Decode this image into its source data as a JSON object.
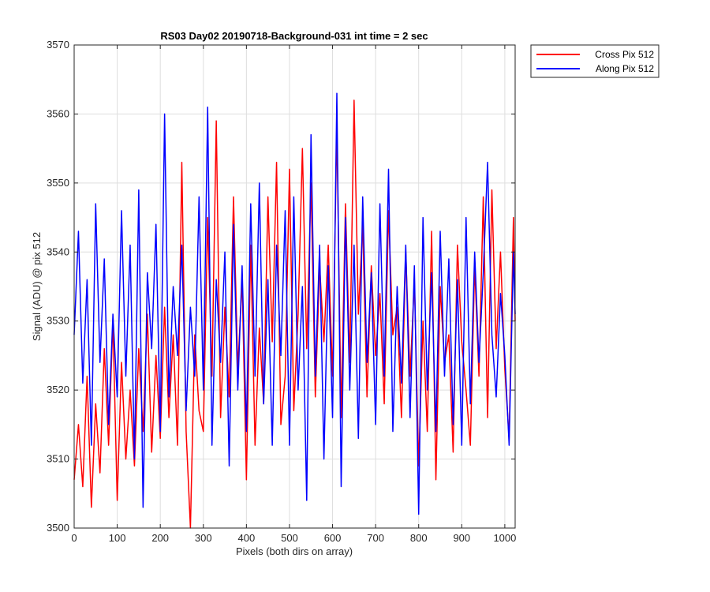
{
  "chart_data": {
    "type": "line",
    "title": "RS03 Day02 20190718-Background-031 int time = 2 sec",
    "xlabel": "Pixels (both dirs on array)",
    "ylabel": "Signal (ADU) @ pix 512",
    "xlim": [
      0,
      1024
    ],
    "ylim": [
      3500,
      3570
    ],
    "xticks": [
      0,
      100,
      200,
      300,
      400,
      500,
      600,
      700,
      800,
      900,
      1000
    ],
    "yticks": [
      3500,
      3510,
      3520,
      3530,
      3540,
      3550,
      3560,
      3570
    ],
    "grid": true,
    "legend_position": "outside-top-right",
    "series": [
      {
        "name": "Cross Pix 512",
        "color": "#ff0000",
        "x": [
          0,
          10,
          20,
          30,
          40,
          50,
          60,
          70,
          80,
          90,
          100,
          110,
          120,
          130,
          140,
          150,
          160,
          170,
          180,
          190,
          200,
          210,
          220,
          230,
          240,
          250,
          260,
          270,
          280,
          290,
          300,
          310,
          320,
          330,
          340,
          350,
          360,
          370,
          380,
          390,
          400,
          410,
          420,
          430,
          440,
          450,
          460,
          470,
          480,
          490,
          500,
          510,
          520,
          530,
          540,
          550,
          560,
          570,
          580,
          590,
          600,
          610,
          620,
          630,
          640,
          650,
          660,
          670,
          680,
          690,
          700,
          710,
          720,
          730,
          740,
          750,
          760,
          770,
          780,
          790,
          800,
          810,
          820,
          830,
          840,
          850,
          860,
          870,
          880,
          890,
          900,
          910,
          920,
          930,
          940,
          950,
          960,
          970,
          980,
          990,
          1000,
          1010,
          1020,
          1024
        ],
        "y": [
          3507,
          3515,
          3506,
          3522,
          3503,
          3518,
          3508,
          3526,
          3512,
          3530,
          3504,
          3524,
          3510,
          3520,
          3509,
          3526,
          3514,
          3531,
          3511,
          3525,
          3513,
          3532,
          3516,
          3528,
          3512,
          3553,
          3514,
          3500,
          3528,
          3517,
          3514,
          3545,
          3522,
          3559,
          3516,
          3532,
          3519,
          3548,
          3523,
          3536,
          3507,
          3541,
          3512,
          3529,
          3518,
          3548,
          3527,
          3553,
          3515,
          3522,
          3552,
          3517,
          3531,
          3555,
          3526,
          3550,
          3519,
          3538,
          3527,
          3541,
          3522,
          3558,
          3516,
          3547,
          3524,
          3562,
          3531,
          3544,
          3519,
          3538,
          3525,
          3534,
          3518,
          3546,
          3528,
          3532,
          3516,
          3540,
          3522,
          3536,
          3509,
          3530,
          3514,
          3543,
          3507,
          3535,
          3524,
          3528,
          3511,
          3541,
          3527,
          3520,
          3512,
          3538,
          3522,
          3548,
          3516,
          3549,
          3526,
          3540,
          3523,
          3513,
          3545,
          3530
        ]
      },
      {
        "name": "Along Pix 512",
        "color": "#0000ff",
        "x": [
          0,
          10,
          20,
          30,
          40,
          50,
          60,
          70,
          80,
          90,
          100,
          110,
          120,
          130,
          140,
          150,
          160,
          170,
          180,
          190,
          200,
          210,
          220,
          230,
          240,
          250,
          260,
          270,
          280,
          290,
          300,
          310,
          320,
          330,
          340,
          350,
          360,
          370,
          380,
          390,
          400,
          410,
          420,
          430,
          440,
          450,
          460,
          470,
          480,
          490,
          500,
          510,
          520,
          530,
          540,
          550,
          560,
          570,
          580,
          590,
          600,
          610,
          620,
          630,
          640,
          650,
          660,
          670,
          680,
          690,
          700,
          710,
          720,
          730,
          740,
          750,
          760,
          770,
          780,
          790,
          800,
          810,
          820,
          830,
          840,
          850,
          860,
          870,
          880,
          890,
          900,
          910,
          920,
          930,
          940,
          950,
          960,
          970,
          980,
          990,
          1000,
          1010,
          1020,
          1024
        ],
        "y": [
          3528,
          3543,
          3521,
          3536,
          3512,
          3547,
          3524,
          3539,
          3515,
          3531,
          3519,
          3546,
          3522,
          3541,
          3510,
          3549,
          3503,
          3537,
          3526,
          3544,
          3514,
          3560,
          3519,
          3535,
          3525,
          3541,
          3517,
          3532,
          3522,
          3548,
          3520,
          3561,
          3512,
          3536,
          3524,
          3540,
          3509,
          3544,
          3520,
          3538,
          3514,
          3547,
          3522,
          3550,
          3518,
          3536,
          3512,
          3541,
          3525,
          3546,
          3512,
          3548,
          3520,
          3535,
          3504,
          3557,
          3522,
          3541,
          3510,
          3538,
          3516,
          3563,
          3506,
          3545,
          3520,
          3541,
          3513,
          3548,
          3524,
          3537,
          3515,
          3547,
          3522,
          3552,
          3514,
          3535,
          3521,
          3541,
          3516,
          3538,
          3502,
          3545,
          3520,
          3537,
          3514,
          3543,
          3522,
          3539,
          3515,
          3536,
          3512,
          3545,
          3518,
          3540,
          3524,
          3537,
          3553,
          3528,
          3519,
          3534,
          3525,
          3512,
          3540,
          3531
        ]
      }
    ]
  }
}
